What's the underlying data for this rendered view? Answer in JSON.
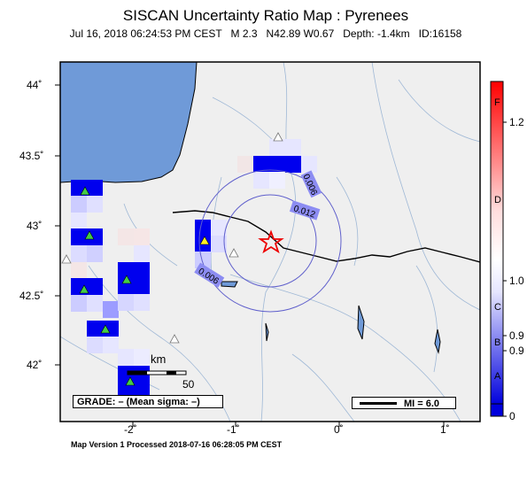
{
  "title": "SISCAN Uncertainty Ratio Map : Pyrenees",
  "subtitle": "Jul 16, 2018 06:24:53 PM CEST   M 2.3   N42.89 W0.67   Depth: -1.4km   ID:16158",
  "footer": "Map Version 1 Processed 2018-07-16 06:28:05 PM CEST",
  "lat_ticks": [
    "44˚",
    "43.5˚",
    "43˚",
    "42.5˚",
    "42˚"
  ],
  "lon_ticks": [
    "-2˚",
    "-1˚",
    "0˚",
    "1˚"
  ],
  "grade": "GRADE: – (Mean sigma: –)",
  "mi_legend": "MI = 6.0",
  "scale": {
    "unit": "km",
    "value": "50"
  },
  "contours": [
    "0.006",
    "0.012",
    "0.006"
  ],
  "colorbar": {
    "letters": [
      "F",
      "D",
      "C",
      "B",
      "A"
    ],
    "values": [
      "1.2",
      "1.0",
      "0.9",
      "0.9",
      "0"
    ]
  },
  "colors": {
    "sea": "#6f9ad8",
    "land": "#efefef",
    "high": "#ff0000",
    "low": "#0000dd"
  }
}
